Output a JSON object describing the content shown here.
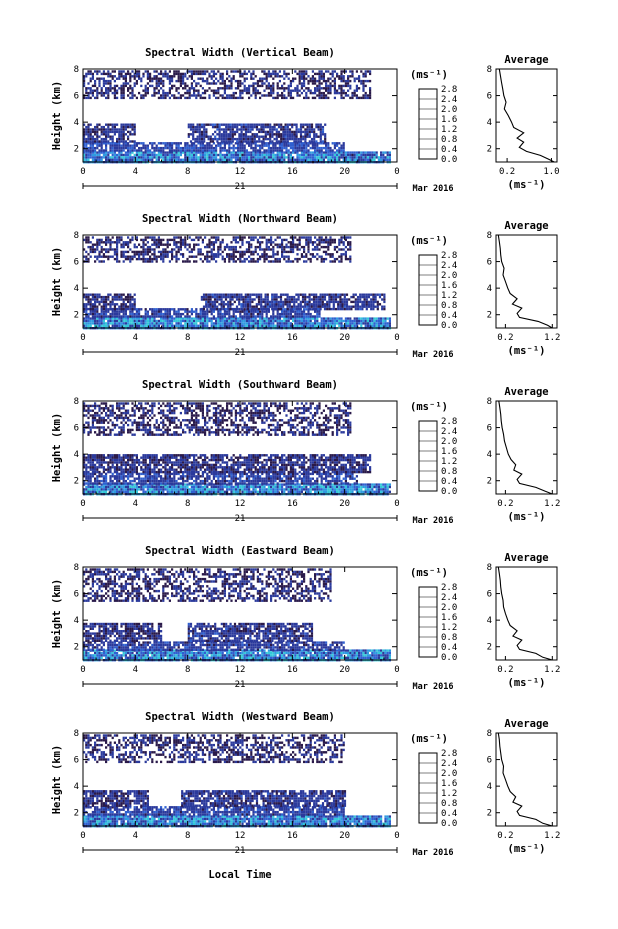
{
  "figure": {
    "xlabel": "Local Time",
    "date_label": "Mar 2016",
    "day_label": "21"
  },
  "colorbar": {
    "unit": "(ms⁻¹)",
    "tick_labels": [
      "0.0",
      "0.4",
      "0.8",
      "1.2",
      "1.6",
      "2.0",
      "2.4",
      "2.8"
    ],
    "colors": [
      "#2a1a4a",
      "#2b3a9c",
      "#3060d0",
      "#2f9be0",
      "#34c8d8",
      "#3fd2a0",
      "#8ad84a",
      "#d8e13a",
      "#f4c43a",
      "#f08a30",
      "#e0402a"
    ]
  },
  "chart_data": [
    {
      "type": "heatmap",
      "title": "Spectral Width (Vertical Beam)",
      "ylabel": "Height (km)",
      "xlabel": "Local Time",
      "x_ticks": [
        "0",
        "4",
        "8",
        "12",
        "16",
        "20",
        "0"
      ],
      "y_ticks": [
        "2",
        "4",
        "6",
        "8"
      ],
      "xlim": [
        0,
        24
      ],
      "ylim": [
        1,
        8
      ],
      "colorbar_range": [
        0.0,
        2.8
      ],
      "layers": [
        {
          "y_range": [
            1.0,
            1.8
          ],
          "x_range": [
            0,
            23.5
          ],
          "value": 0.7
        },
        {
          "y_range": [
            1.8,
            2.5
          ],
          "x_range": [
            0,
            20
          ],
          "value": 0.45
        },
        {
          "y_range": [
            2.5,
            3.9
          ],
          "x_range": [
            0,
            4
          ],
          "value": 0.3
        },
        {
          "y_range": [
            2.5,
            3.9
          ],
          "x_range": [
            8,
            18.5
          ],
          "value": 0.35
        },
        {
          "y_range": [
            5.8,
            7.9
          ],
          "x_range": [
            0,
            22
          ],
          "value": 0.25
        }
      ],
      "profile": {
        "title": "Average",
        "xlabel": "(ms⁻¹)",
        "x_ticks": [
          "0.2",
          "1.0"
        ],
        "y_ticks": [
          "2",
          "4",
          "6",
          "8"
        ],
        "xlim": [
          0.0,
          1.1
        ],
        "ylim": [
          1,
          8
        ],
        "heights": [
          1.0,
          1.2,
          1.5,
          1.8,
          2.1,
          2.5,
          2.8,
          3.2,
          3.6,
          4.0,
          4.5,
          5.0,
          5.5,
          6.0,
          6.5,
          7.0,
          7.5,
          8.0
        ],
        "values": [
          1.05,
          0.95,
          0.8,
          0.55,
          0.42,
          0.5,
          0.38,
          0.5,
          0.32,
          0.28,
          0.22,
          0.15,
          0.18,
          0.14,
          0.12,
          0.1,
          0.08,
          0.06
        ]
      }
    },
    {
      "type": "heatmap",
      "title": "Spectral Width (Northward Beam)",
      "ylabel": "Height (km)",
      "xlabel": "Local Time",
      "x_ticks": [
        "0",
        "4",
        "8",
        "12",
        "16",
        "20",
        "0"
      ],
      "y_ticks": [
        "2",
        "4",
        "6",
        "8"
      ],
      "xlim": [
        0,
        24
      ],
      "ylim": [
        1,
        8
      ],
      "colorbar_range": [
        0.0,
        2.8
      ],
      "layers": [
        {
          "y_range": [
            1.0,
            1.8
          ],
          "x_range": [
            0,
            23.5
          ],
          "value": 0.75
        },
        {
          "y_range": [
            1.8,
            2.5
          ],
          "x_range": [
            0,
            18
          ],
          "value": 0.4
        },
        {
          "y_range": [
            2.5,
            3.6
          ],
          "x_range": [
            0,
            4
          ],
          "value": 0.3
        },
        {
          "y_range": [
            2.5,
            3.6
          ],
          "x_range": [
            9,
            23
          ],
          "value": 0.35
        },
        {
          "y_range": [
            6.0,
            7.9
          ],
          "x_range": [
            0,
            20.5
          ],
          "value": 0.25
        }
      ],
      "profile": {
        "title": "Average",
        "xlabel": "(ms⁻¹)",
        "x_ticks": [
          "0.2",
          "1.2"
        ],
        "y_ticks": [
          "2",
          "4",
          "6",
          "8"
        ],
        "xlim": [
          0.0,
          1.3
        ],
        "ylim": [
          1,
          8
        ],
        "heights": [
          1.0,
          1.2,
          1.5,
          1.8,
          2.1,
          2.5,
          2.8,
          3.2,
          3.6,
          4.0,
          4.5,
          5.0,
          5.5,
          6.0,
          6.5,
          7.0,
          7.5,
          8.0
        ],
        "values": [
          1.2,
          1.1,
          0.9,
          0.5,
          0.45,
          0.55,
          0.35,
          0.45,
          0.3,
          0.25,
          0.2,
          0.15,
          0.17,
          0.12,
          0.1,
          0.09,
          0.07,
          0.05
        ]
      }
    },
    {
      "type": "heatmap",
      "title": "Spectral Width (Southward Beam)",
      "ylabel": "Height (km)",
      "xlabel": "Local Time",
      "x_ticks": [
        "0",
        "4",
        "8",
        "12",
        "16",
        "20",
        "0"
      ],
      "y_ticks": [
        "2",
        "4",
        "6",
        "8"
      ],
      "xlim": [
        0,
        24
      ],
      "ylim": [
        1,
        8
      ],
      "colorbar_range": [
        0.0,
        2.8
      ],
      "layers": [
        {
          "y_range": [
            1.0,
            1.8
          ],
          "x_range": [
            0,
            23.5
          ],
          "value": 0.75
        },
        {
          "y_range": [
            1.8,
            2.6
          ],
          "x_range": [
            0,
            21
          ],
          "value": 0.4
        },
        {
          "y_range": [
            2.6,
            4.0
          ],
          "x_range": [
            0,
            22
          ],
          "value": 0.3
        },
        {
          "y_range": [
            5.5,
            7.9
          ],
          "x_range": [
            0,
            20.5
          ],
          "value": 0.25
        }
      ],
      "profile": {
        "title": "Average",
        "xlabel": "(ms⁻¹)",
        "x_ticks": [
          "0.2",
          "1.2"
        ],
        "y_ticks": [
          "2",
          "4",
          "6",
          "8"
        ],
        "xlim": [
          0.0,
          1.3
        ],
        "ylim": [
          1,
          8
        ],
        "heights": [
          1.0,
          1.2,
          1.5,
          1.8,
          2.1,
          2.5,
          2.8,
          3.2,
          3.6,
          4.0,
          4.5,
          5.0,
          5.5,
          6.0,
          6.5,
          7.0,
          7.5,
          8.0
        ],
        "values": [
          1.2,
          1.05,
          0.85,
          0.5,
          0.45,
          0.55,
          0.38,
          0.42,
          0.32,
          0.26,
          0.22,
          0.18,
          0.16,
          0.13,
          0.11,
          0.1,
          0.08,
          0.06
        ]
      }
    },
    {
      "type": "heatmap",
      "title": "Spectral Width (Eastward Beam)",
      "ylabel": "Height (km)",
      "xlabel": "Local Time",
      "x_ticks": [
        "0",
        "4",
        "8",
        "12",
        "16",
        "20",
        "0"
      ],
      "y_ticks": [
        "2",
        "4",
        "6",
        "8"
      ],
      "xlim": [
        0,
        24
      ],
      "ylim": [
        1,
        8
      ],
      "colorbar_range": [
        0.0,
        2.8
      ],
      "layers": [
        {
          "y_range": [
            1.0,
            1.8
          ],
          "x_range": [
            0,
            23.5
          ],
          "value": 0.75
        },
        {
          "y_range": [
            1.8,
            2.4
          ],
          "x_range": [
            0,
            20
          ],
          "value": 0.4
        },
        {
          "y_range": [
            2.4,
            3.8
          ],
          "x_range": [
            0,
            6
          ],
          "value": 0.3
        },
        {
          "y_range": [
            2.4,
            3.8
          ],
          "x_range": [
            8,
            17.5
          ],
          "value": 0.35
        },
        {
          "y_range": [
            5.5,
            7.9
          ],
          "x_range": [
            0,
            19
          ],
          "value": 0.25
        }
      ],
      "profile": {
        "title": "Average",
        "xlabel": "(ms⁻¹)",
        "x_ticks": [
          "0.2",
          "1.2"
        ],
        "y_ticks": [
          "2",
          "4",
          "6",
          "8"
        ],
        "xlim": [
          0.0,
          1.3
        ],
        "ylim": [
          1,
          8
        ],
        "heights": [
          1.0,
          1.2,
          1.5,
          1.8,
          2.1,
          2.5,
          2.8,
          3.2,
          3.6,
          4.0,
          4.5,
          5.0,
          5.5,
          6.0,
          6.5,
          7.0,
          7.5,
          8.0
        ],
        "values": [
          1.2,
          1.0,
          0.85,
          0.5,
          0.45,
          0.55,
          0.36,
          0.45,
          0.3,
          0.25,
          0.2,
          0.16,
          0.15,
          0.12,
          0.1,
          0.09,
          0.07,
          0.05
        ]
      }
    },
    {
      "type": "heatmap",
      "title": "Spectral Width (Westward Beam)",
      "ylabel": "Height (km)",
      "xlabel": "Local Time",
      "x_ticks": [
        "0",
        "4",
        "8",
        "12",
        "16",
        "20",
        "0"
      ],
      "y_ticks": [
        "2",
        "4",
        "6",
        "8"
      ],
      "xlim": [
        0,
        24
      ],
      "ylim": [
        1,
        8
      ],
      "colorbar_range": [
        0.0,
        2.8
      ],
      "layers": [
        {
          "y_range": [
            1.0,
            1.8
          ],
          "x_range": [
            0,
            23.5
          ],
          "value": 0.75
        },
        {
          "y_range": [
            1.8,
            2.5
          ],
          "x_range": [
            0,
            20
          ],
          "value": 0.4
        },
        {
          "y_range": [
            2.5,
            3.7
          ],
          "x_range": [
            0,
            5
          ],
          "value": 0.3
        },
        {
          "y_range": [
            2.5,
            3.7
          ],
          "x_range": [
            7.5,
            20
          ],
          "value": 0.35
        },
        {
          "y_range": [
            5.8,
            7.9
          ],
          "x_range": [
            0,
            20
          ],
          "value": 0.25
        }
      ],
      "profile": {
        "title": "Average",
        "xlabel": "(ms⁻¹)",
        "x_ticks": [
          "0.2",
          "1.2"
        ],
        "y_ticks": [
          "2",
          "4",
          "6",
          "8"
        ],
        "xlim": [
          0.0,
          1.3
        ],
        "ylim": [
          1,
          8
        ],
        "heights": [
          1.0,
          1.2,
          1.5,
          1.8,
          2.1,
          2.5,
          2.8,
          3.2,
          3.6,
          4.0,
          4.5,
          5.0,
          5.5,
          6.0,
          6.5,
          7.0,
          7.5,
          8.0
        ],
        "values": [
          1.2,
          1.0,
          0.85,
          0.5,
          0.45,
          0.55,
          0.36,
          0.42,
          0.3,
          0.25,
          0.2,
          0.15,
          0.16,
          0.12,
          0.1,
          0.08,
          0.07,
          0.05
        ]
      }
    }
  ]
}
